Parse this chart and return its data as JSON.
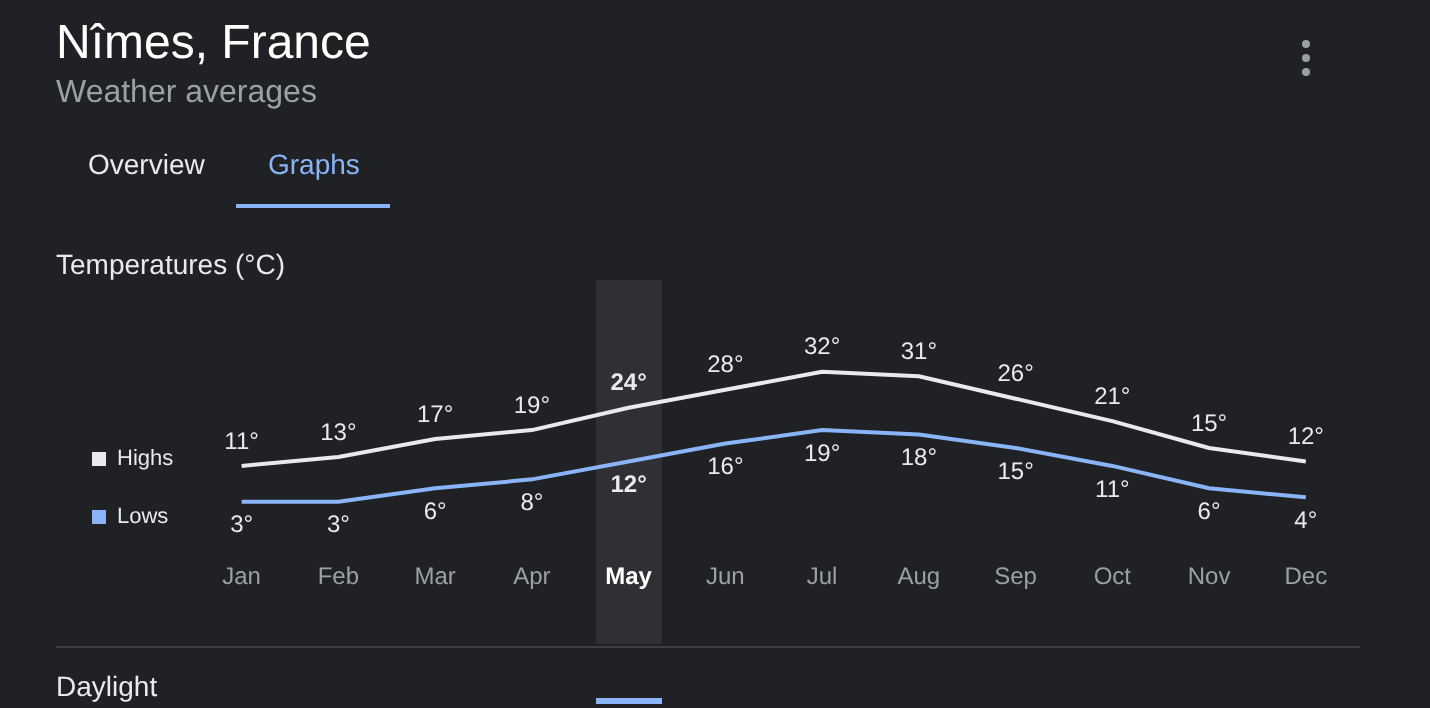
{
  "chart_data": {
    "type": "line",
    "title": "Nîmes, France",
    "subtitle": "Weather averages",
    "annotations": [
      "Overview",
      "Graphs",
      "Temperatures (°C)",
      "Daylight"
    ],
    "categories": [
      "Jan",
      "Feb",
      "Mar",
      "Apr",
      "May",
      "Jun",
      "Jul",
      "Aug",
      "Sep",
      "Oct",
      "Nov",
      "Dec"
    ],
    "series": [
      {
        "name": "Highs",
        "color": "#e8eaed",
        "values": [
          11,
          13,
          17,
          19,
          24,
          28,
          32,
          31,
          26,
          21,
          15,
          12
        ],
        "value_labels": [
          "11°",
          "13°",
          "17°",
          "19°",
          "24°",
          "28°",
          "32°",
          "31°",
          "26°",
          "21°",
          "15°",
          "12°"
        ]
      },
      {
        "name": "Lows",
        "color": "#8ab4f8",
        "values": [
          3,
          3,
          6,
          8,
          12,
          16,
          19,
          18,
          15,
          11,
          6,
          4
        ],
        "value_labels": [
          "3°",
          "3°",
          "6°",
          "8°",
          "12°",
          "16°",
          "19°",
          "18°",
          "15°",
          "11°",
          "6°",
          "4°"
        ]
      }
    ],
    "tick_labels": "x",
    "grid": false,
    "legend": "left",
    "marker": "none",
    "line_style": "solid"
  }
}
